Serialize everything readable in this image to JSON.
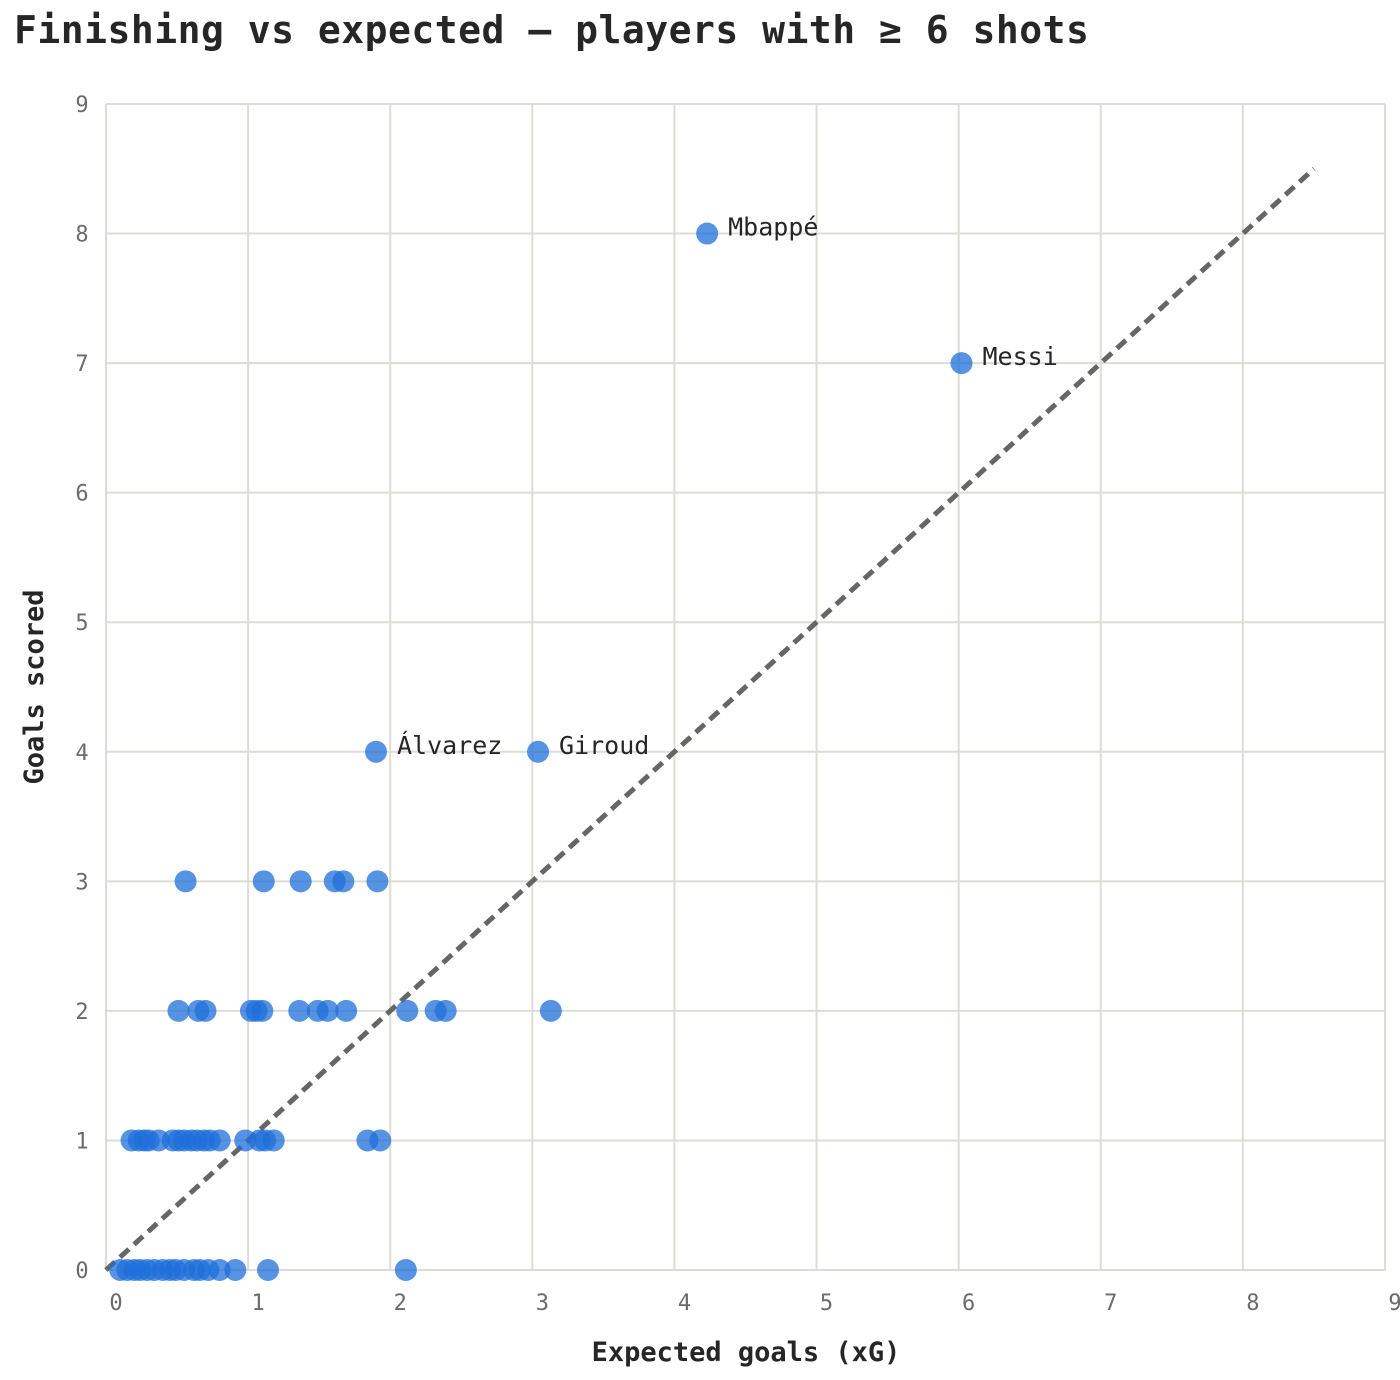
{
  "chart_data": {
    "type": "scatter",
    "title": "Finishing vs expected — players with ≥ 6 shots",
    "xlabel": "Expected goals (xG)",
    "ylabel": "Goals scored",
    "xlim": [
      0,
      9
    ],
    "ylim": [
      0,
      9
    ],
    "xticks": [
      "0",
      "1",
      "2",
      "3",
      "4",
      "5",
      "6",
      "7",
      "8",
      "9"
    ],
    "yticks": [
      "0",
      "1",
      "2",
      "3",
      "4",
      "5",
      "6",
      "7",
      "8",
      "9"
    ],
    "grid": true,
    "colors": {
      "point": "#1f6fd9",
      "reference": "#666666",
      "grid": "#dedcd6"
    },
    "reference_line": {
      "from": [
        0,
        0
      ],
      "to": [
        8.5,
        8.5
      ],
      "style": "dashed"
    },
    "points": [
      {
        "x": 4.23,
        "y": 8,
        "label": "Mbappé"
      },
      {
        "x": 6.02,
        "y": 7,
        "label": "Messi"
      },
      {
        "x": 1.9,
        "y": 4,
        "label": "Álvarez"
      },
      {
        "x": 3.04,
        "y": 4,
        "label": "Giroud"
      },
      {
        "x": 0.56,
        "y": 3
      },
      {
        "x": 1.11,
        "y": 3
      },
      {
        "x": 1.37,
        "y": 3
      },
      {
        "x": 1.61,
        "y": 3
      },
      {
        "x": 1.67,
        "y": 3
      },
      {
        "x": 1.91,
        "y": 3
      },
      {
        "x": 0.51,
        "y": 2
      },
      {
        "x": 0.65,
        "y": 2
      },
      {
        "x": 0.7,
        "y": 2
      },
      {
        "x": 1.02,
        "y": 2
      },
      {
        "x": 1.06,
        "y": 2
      },
      {
        "x": 1.1,
        "y": 2
      },
      {
        "x": 1.36,
        "y": 2
      },
      {
        "x": 1.49,
        "y": 2
      },
      {
        "x": 1.56,
        "y": 2
      },
      {
        "x": 1.69,
        "y": 2
      },
      {
        "x": 2.12,
        "y": 2
      },
      {
        "x": 2.32,
        "y": 2
      },
      {
        "x": 2.39,
        "y": 2
      },
      {
        "x": 3.13,
        "y": 2
      },
      {
        "x": 0.18,
        "y": 1
      },
      {
        "x": 0.23,
        "y": 1
      },
      {
        "x": 0.27,
        "y": 1
      },
      {
        "x": 0.3,
        "y": 1
      },
      {
        "x": 0.37,
        "y": 1
      },
      {
        "x": 0.47,
        "y": 1
      },
      {
        "x": 0.51,
        "y": 1
      },
      {
        "x": 0.55,
        "y": 1
      },
      {
        "x": 0.6,
        "y": 1
      },
      {
        "x": 0.64,
        "y": 1
      },
      {
        "x": 0.69,
        "y": 1
      },
      {
        "x": 0.73,
        "y": 1
      },
      {
        "x": 0.8,
        "y": 1
      },
      {
        "x": 0.98,
        "y": 1
      },
      {
        "x": 1.08,
        "y": 1
      },
      {
        "x": 1.12,
        "y": 1
      },
      {
        "x": 1.18,
        "y": 1
      },
      {
        "x": 1.84,
        "y": 1
      },
      {
        "x": 1.93,
        "y": 1
      },
      {
        "x": 0.1,
        "y": 0
      },
      {
        "x": 0.15,
        "y": 0
      },
      {
        "x": 0.2,
        "y": 0
      },
      {
        "x": 0.24,
        "y": 0
      },
      {
        "x": 0.29,
        "y": 0
      },
      {
        "x": 0.34,
        "y": 0
      },
      {
        "x": 0.4,
        "y": 0
      },
      {
        "x": 0.45,
        "y": 0
      },
      {
        "x": 0.49,
        "y": 0
      },
      {
        "x": 0.55,
        "y": 0
      },
      {
        "x": 0.62,
        "y": 0
      },
      {
        "x": 0.66,
        "y": 0
      },
      {
        "x": 0.72,
        "y": 0
      },
      {
        "x": 0.8,
        "y": 0
      },
      {
        "x": 0.91,
        "y": 0
      },
      {
        "x": 1.14,
        "y": 0
      },
      {
        "x": 2.11,
        "y": 0
      }
    ]
  }
}
